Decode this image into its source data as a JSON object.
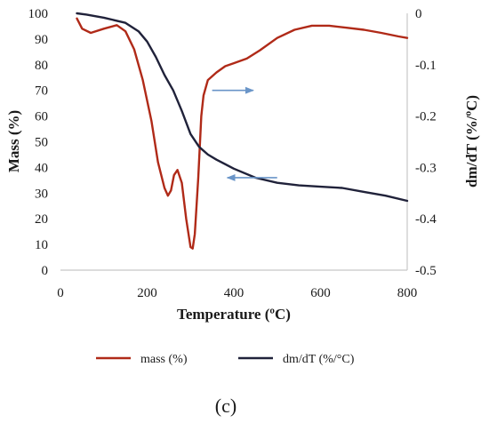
{
  "chart_data": {
    "type": "line",
    "xlabel": "Temperature (ºC)",
    "ylabel_left": "Mass (%)",
    "ylabel_right": "dm/dT (%/ºC)",
    "xlim": [
      0,
      800
    ],
    "ylim_left": [
      0,
      100
    ],
    "ylim_right": [
      -0.5,
      0
    ],
    "x_ticks": [
      "0",
      "200",
      "400",
      "600",
      "800"
    ],
    "y_left_ticks": [
      "0",
      "10",
      "20",
      "30",
      "40",
      "50",
      "60",
      "70",
      "80",
      "90",
      "100"
    ],
    "y_right_ticks": [
      "-0.5",
      "-0.4",
      "-0.3",
      "-0.2",
      "-0.1",
      "0"
    ],
    "grid": false,
    "legend_position": "bottom",
    "series": [
      {
        "name": "mass (%)",
        "axis": "right",
        "color": "#b02a18",
        "x": [
          38,
          50,
          70,
          100,
          130,
          150,
          170,
          190,
          210,
          225,
          240,
          248,
          255,
          262,
          270,
          280,
          290,
          300,
          305,
          310,
          318,
          325,
          330,
          340,
          360,
          380,
          400,
          430,
          460,
          500,
          540,
          580,
          620,
          660,
          700,
          740,
          780,
          800
        ],
        "values": [
          -0.01,
          -0.03,
          -0.038,
          -0.03,
          -0.023,
          -0.035,
          -0.07,
          -0.13,
          -0.21,
          -0.29,
          -0.34,
          -0.355,
          -0.345,
          -0.315,
          -0.305,
          -0.33,
          -0.4,
          -0.455,
          -0.458,
          -0.43,
          -0.32,
          -0.2,
          -0.16,
          -0.13,
          -0.115,
          -0.103,
          -0.097,
          -0.088,
          -0.072,
          -0.048,
          -0.032,
          -0.024,
          -0.024,
          -0.028,
          -0.032,
          -0.038,
          -0.045,
          -0.048
        ]
      },
      {
        "name": "dm/dT (%/°C)",
        "axis": "left",
        "color": "#20223a",
        "x": [
          38,
          60,
          100,
          150,
          180,
          200,
          220,
          240,
          260,
          280,
          300,
          320,
          340,
          360,
          400,
          450,
          500,
          550,
          600,
          650,
          700,
          750,
          800
        ],
        "values": [
          100,
          99.5,
          98.3,
          96.3,
          93,
          89,
          83,
          76,
          70,
          62,
          53,
          48,
          45,
          43,
          39.5,
          36,
          34,
          33,
          32.5,
          32,
          30.5,
          29,
          27
        ]
      }
    ],
    "annotations": [
      {
        "type": "arrow",
        "direction": "right",
        "points_to": "right axis",
        "from_x": 350,
        "to_x": 445,
        "y_left": 70
      },
      {
        "type": "arrow",
        "direction": "left",
        "points_to": "left axis",
        "from_x": 500,
        "to_x": 385,
        "y_left": 36
      }
    ],
    "panel_label": "(c)"
  }
}
